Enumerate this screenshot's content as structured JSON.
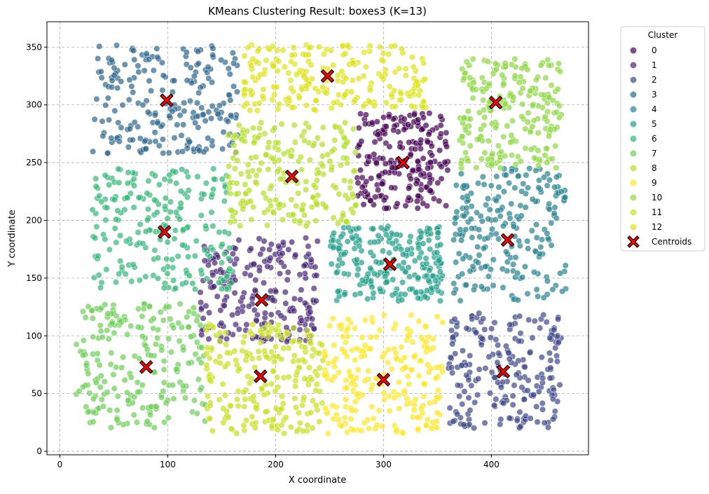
{
  "chart_data": {
    "type": "scatter",
    "title": "KMeans Clustering Result: boxes3 (K=13)",
    "xlabel": "X coordinate",
    "ylabel": "Y coordinate",
    "xlim": [
      -12,
      490
    ],
    "ylim": [
      -3,
      372
    ],
    "xticks": [
      0,
      100,
      200,
      300,
      400
    ],
    "yticks": [
      0,
      50,
      100,
      150,
      200,
      250,
      300,
      350
    ],
    "grid": true,
    "legend": {
      "title": "Cluster",
      "placement": "outside-right",
      "centroids_label": "Centroids"
    },
    "clusters": [
      {
        "name": "0",
        "color": "#440154",
        "centroid": [
          318,
          250
        ],
        "x_range": [
          275,
          360
        ],
        "y_range": [
          210,
          293
        ]
      },
      {
        "name": "1",
        "color": "#482878",
        "centroid": [
          187,
          131
        ],
        "x_range": [
          130,
          240
        ],
        "y_range": [
          95,
          185
        ]
      },
      {
        "name": "2",
        "color": "#3e4989",
        "centroid": [
          411,
          69
        ],
        "x_range": [
          360,
          465
        ],
        "y_range": [
          20,
          120
        ]
      },
      {
        "name": "3",
        "color": "#31688e",
        "centroid": [
          99,
          304
        ],
        "x_range": [
          30,
          165
        ],
        "y_range": [
          258,
          352
        ]
      },
      {
        "name": "4",
        "color": "#26828e",
        "centroid": [
          415,
          183
        ],
        "x_range": [
          365,
          470
        ],
        "y_range": [
          130,
          245
        ]
      },
      {
        "name": "5",
        "color": "#1f9e89",
        "centroid": [
          306,
          162
        ],
        "x_range": [
          250,
          355
        ],
        "y_range": [
          130,
          195
        ]
      },
      {
        "name": "6",
        "color": "#35b779",
        "centroid": [
          97,
          190
        ],
        "x_range": [
          30,
          160
        ],
        "y_range": [
          140,
          245
        ]
      },
      {
        "name": "7",
        "color": "#6ece58",
        "centroid": [
          80,
          73
        ],
        "x_range": [
          15,
          135
        ],
        "y_range": [
          20,
          128
        ]
      },
      {
        "name": "8",
        "color": "#b5de2b",
        "centroid": [
          215,
          238
        ],
        "x_range": [
          155,
          275
        ],
        "y_range": [
          195,
          285
        ]
      },
      {
        "name": "9",
        "color": "#fde725",
        "centroid": [
          300,
          62
        ],
        "x_range": [
          245,
          355
        ],
        "y_range": [
          15,
          118
        ]
      },
      {
        "name": "10",
        "color": "#8fd744",
        "centroid": [
          404,
          302
        ],
        "x_range": [
          370,
          465
        ],
        "y_range": [
          245,
          340
        ]
      },
      {
        "name": "11",
        "color": "#c8e020",
        "centroid": [
          186,
          65
        ],
        "x_range": [
          135,
          245
        ],
        "y_range": [
          15,
          110
        ]
      },
      {
        "name": "12",
        "color": "#dde318",
        "centroid": [
          248,
          325
        ],
        "x_range": [
          170,
          340
        ],
        "y_range": [
          295,
          352
        ]
      }
    ]
  }
}
